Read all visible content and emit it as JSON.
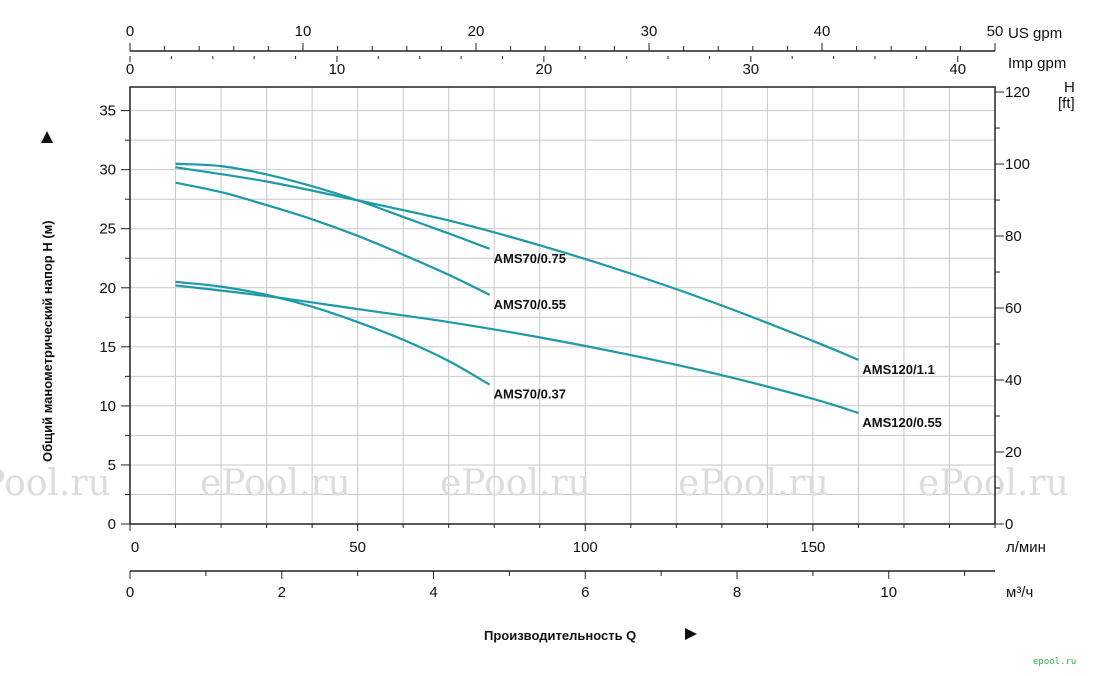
{
  "chart_data": {
    "type": "line",
    "xlabel": "Производительность Q",
    "ylabel": "Общий манометрический напор H (м)",
    "x_axes": {
      "primary": {
        "unit": "л/мин",
        "range": [
          0,
          190
        ],
        "ticks": [
          0,
          50,
          100,
          150
        ]
      },
      "secondary_m3h": {
        "unit": "м³/ч",
        "range": [
          0,
          11.4
        ],
        "ticks": [
          0,
          2,
          4,
          6,
          8,
          10
        ]
      },
      "top_us_gpm": {
        "unit": "US gpm",
        "range": [
          0,
          50
        ],
        "ticks": [
          0,
          10,
          20,
          30,
          40,
          50
        ]
      },
      "top_imp_gpm": {
        "unit": "Imp gpm",
        "range": [
          0,
          41.8
        ],
        "ticks": [
          0,
          10,
          20,
          30,
          40
        ]
      }
    },
    "y_axes": {
      "left": {
        "unit": "м",
        "range": [
          0,
          37
        ],
        "ticks": [
          0,
          5,
          10,
          15,
          20,
          25,
          30,
          35
        ]
      },
      "right": {
        "unit_top": "H",
        "unit_bottom": "[ft]",
        "range": [
          0,
          121.4
        ],
        "ticks": [
          0,
          20,
          40,
          60,
          80,
          100,
          120
        ]
      }
    },
    "grid": true,
    "series": [
      {
        "name": "AMS70/0.75",
        "x": [
          10,
          20,
          30,
          40,
          50,
          60,
          70,
          79
        ],
        "y": [
          30.5,
          30.3,
          29.6,
          28.6,
          27.4,
          26.0,
          24.6,
          23.3
        ]
      },
      {
        "name": "AMS70/0.55",
        "x": [
          10,
          20,
          30,
          40,
          50,
          60,
          70,
          79
        ],
        "y": [
          28.9,
          28.1,
          27.0,
          25.8,
          24.4,
          22.8,
          21.1,
          19.4
        ]
      },
      {
        "name": "AMS70/0.37",
        "x": [
          10,
          20,
          30,
          40,
          50,
          60,
          70,
          79
        ],
        "y": [
          20.5,
          20.1,
          19.4,
          18.4,
          17.1,
          15.6,
          13.8,
          11.8
        ]
      },
      {
        "name": "AMS120/1.1",
        "x": [
          10,
          30,
          50,
          70,
          90,
          110,
          130,
          150,
          160
        ],
        "y": [
          30.2,
          29.0,
          27.4,
          25.7,
          23.6,
          21.2,
          18.5,
          15.5,
          13.9
        ]
      },
      {
        "name": "AMS120/0.55",
        "x": [
          10,
          30,
          50,
          70,
          90,
          110,
          130,
          150,
          160
        ],
        "y": [
          20.2,
          19.3,
          18.2,
          17.1,
          15.8,
          14.3,
          12.6,
          10.6,
          9.4
        ]
      }
    ],
    "line_color": "#1d9aa8",
    "watermark": "ePool.ru",
    "logo": "epool.ru"
  }
}
